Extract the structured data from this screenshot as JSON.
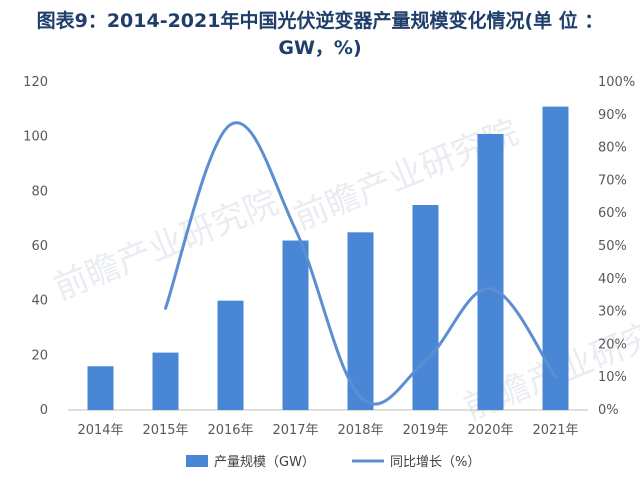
{
  "title_line1": "图表9：2014-2021年中国光伏逆变器产量规模变化情况(单 位 ：",
  "title_line2": "GW，%)",
  "watermark": "前瞻产业研究院",
  "colors": {
    "bar": "#4a86d6",
    "line": "#5b8fd2",
    "title": "#1f3e6b",
    "axis": "#bfbfbf",
    "text": "#595959"
  },
  "chart_data": {
    "type": "bar",
    "categories": [
      "2014年",
      "2015年",
      "2016年",
      "2017年",
      "2018年",
      "2019年",
      "2020年",
      "2021年"
    ],
    "series": [
      {
        "name": "产量规模（GW）",
        "type": "bar",
        "axis": "left",
        "values": [
          16,
          21,
          40,
          62,
          65,
          75,
          101,
          111
        ]
      },
      {
        "name": "同比增长（%）",
        "type": "line",
        "axis": "right",
        "values": [
          null,
          31,
          87,
          55,
          4,
          15,
          37,
          10
        ]
      }
    ],
    "y_left": {
      "min": 0,
      "max": 120,
      "ticks": [
        "0",
        "20",
        "40",
        "60",
        "80",
        "100",
        "120"
      ]
    },
    "y_right": {
      "min": 0,
      "max": 100,
      "ticks": [
        "0%",
        "10%",
        "20%",
        "30%",
        "40%",
        "50%",
        "60%",
        "70%",
        "80%",
        "90%",
        "100%"
      ]
    },
    "grid": false,
    "legend_position": "bottom"
  }
}
